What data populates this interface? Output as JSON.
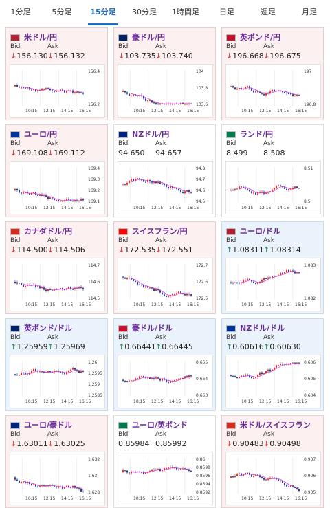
{
  "tabs": [
    "1分足",
    "5分足",
    "15分足",
    "30分足",
    "1時間足",
    "日足",
    "週足",
    "月足"
  ],
  "active_tab": 2,
  "colors": {
    "down_bg": "#fdf0f0",
    "up_bg": "#eaf3fb",
    "title": "#6a2a9a",
    "up_candle": "#e0302a",
    "down_candle": "#2a3d9a",
    "ma": "#d040d0"
  },
  "labels": {
    "bid": "Bid",
    "ask": "Ask"
  },
  "pairs": [
    {
      "name": "米ドル/円",
      "bid": "156.130",
      "ask": "156.132",
      "dir": "down",
      "ticks": [
        "156.4",
        "156.2"
      ],
      "times": [
        "10:15",
        "12:15",
        "14:15",
        "16:15"
      ]
    },
    {
      "name": "豪ドル/円",
      "bid": "103.735",
      "ask": "103.740",
      "dir": "down",
      "ticks": [
        "104",
        "103.8",
        "103.6"
      ],
      "times": [
        "10:15",
        "12:15",
        "14:15",
        "16:15"
      ]
    },
    {
      "name": "英ポンド/円",
      "bid": "196.668",
      "ask": "196.675",
      "dir": "down",
      "ticks": [
        "197",
        "196.8"
      ],
      "times": [
        "10:15",
        "12:15",
        "14:15",
        "16:15"
      ]
    },
    {
      "name": "ユーロ/円",
      "bid": "169.108",
      "ask": "169.112",
      "dir": "down",
      "ticks": [
        "169.4",
        "169.3",
        "169.2",
        "169.1"
      ],
      "times": [
        "10:15",
        "12:15",
        "14:15",
        "16:15"
      ]
    },
    {
      "name": "NZドル/円",
      "bid": "94.650",
      "ask": "94.657",
      "dir": "none",
      "ticks": [
        "94.8",
        "94.7",
        "94.6",
        "94.5"
      ],
      "times": [
        "10:15",
        "12:15",
        "14:15",
        "16:15"
      ]
    },
    {
      "name": "ランド/円",
      "bid": "8.499",
      "ask": "8.508",
      "dir": "none",
      "ticks": [
        "8.51",
        "8.5"
      ],
      "times": [
        "10:15",
        "12:15",
        "14:15",
        "16:15"
      ]
    },
    {
      "name": "カナダドル/円",
      "bid": "114.500",
      "ask": "114.506",
      "dir": "down",
      "ticks": [
        "114.7",
        "114.6",
        "114.5"
      ],
      "times": [
        "10:15",
        "12:15",
        "14:15",
        "16:15"
      ]
    },
    {
      "name": "スイスフラン/円",
      "bid": "172.535",
      "ask": "172.551",
      "dir": "down",
      "ticks": [
        "172.7",
        "172.6",
        "172.5"
      ],
      "times": [
        "10:15",
        "12:15",
        "14:15",
        "16:15"
      ]
    },
    {
      "name": "ユーロ/ドル",
      "bid": "1.08311",
      "ask": "1.08314",
      "dir": "up",
      "ticks": [
        "1.083",
        "1.082"
      ],
      "times": [
        "10:15",
        "12:15",
        "14:15",
        "16:15"
      ]
    },
    {
      "name": "英ポンド/ドル",
      "bid": "1.25959",
      "ask": "1.25969",
      "dir": "up",
      "ticks": [
        "1.26",
        "1.2595",
        "1.259",
        "1.2585"
      ],
      "times": [
        "10:15",
        "12:15",
        "14:15",
        "16:15"
      ]
    },
    {
      "name": "豪ドル/ドル",
      "bid": "0.66441",
      "ask": "0.66445",
      "dir": "up",
      "ticks": [
        "0.665",
        "0.664",
        "0.663"
      ],
      "times": [
        "10:15",
        "12:15",
        "14:15",
        "16:15"
      ]
    },
    {
      "name": "NZドル/ドル",
      "bid": "0.60616",
      "ask": "0.60630",
      "dir": "up",
      "ticks": [
        "0.606",
        "0.605",
        "0.604"
      ],
      "times": [
        "10:15",
        "12:15",
        "14:15",
        "16:15"
      ]
    },
    {
      "name": "ユーロ/豪ドル",
      "bid": "1.63011",
      "ask": "1.63025",
      "dir": "down",
      "ticks": [
        "1.632",
        "1.63",
        "1.628"
      ],
      "times": [
        "10:15",
        "12:15",
        "14:15",
        "16:15"
      ]
    },
    {
      "name": "ユーロ/英ポンド",
      "bid": "0.85984",
      "ask": "0.85992",
      "dir": "none",
      "ticks": [
        "0.86",
        "0.8598",
        "0.8596",
        "0.8594",
        "0.8592"
      ],
      "times": [
        "10:15",
        "12:15",
        "14:15",
        "16:15"
      ]
    },
    {
      "name": "米ドル/スイスフラン",
      "bid": "0.90483",
      "ask": "0.90498",
      "dir": "down",
      "ticks": [
        "0.907",
        "0.906",
        "0.905"
      ],
      "times": [
        "10:15",
        "12:15",
        "14:15",
        "16:15"
      ]
    }
  ]
}
